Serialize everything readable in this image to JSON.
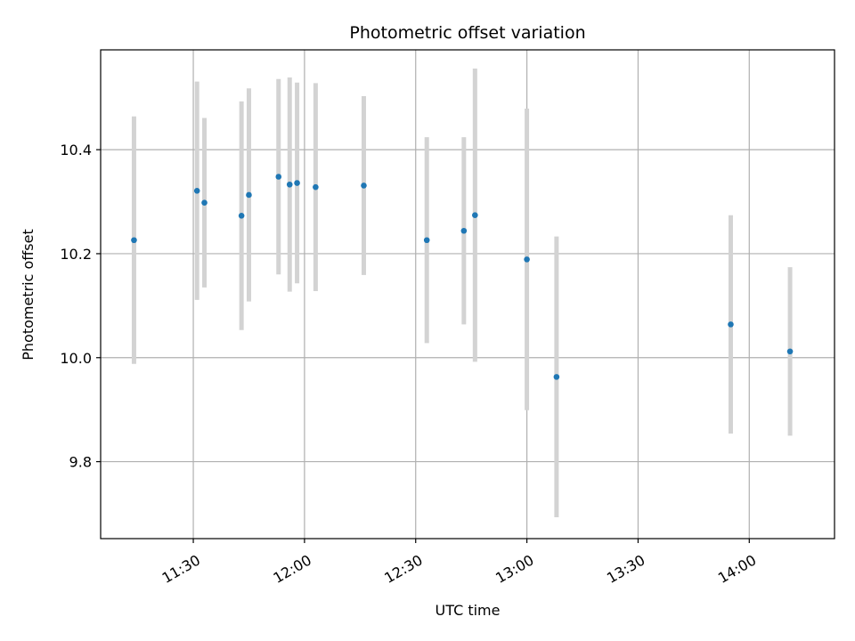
{
  "chart_data": {
    "type": "scatter",
    "title": "Photometric offset variation",
    "xlabel": "UTC time",
    "ylabel": "Photometric offset",
    "grid": true,
    "x_unit": "UTC time of day (HH:MM)",
    "xlim": [
      "11:05",
      "14:23"
    ],
    "ylim": [
      9.652,
      10.592
    ],
    "x_ticks": [
      "11:30",
      "12:00",
      "12:30",
      "13:00",
      "13:30",
      "14:00"
    ],
    "y_ticks": [
      9.8,
      10.0,
      10.2,
      10.4
    ],
    "y_tick_labels": [
      "9.8",
      "10.0",
      "10.2",
      "10.4"
    ],
    "marker_color": "#1f77b4",
    "errorbar_color": "#d3d3d3",
    "points": [
      {
        "x": "11:14",
        "y": 10.226,
        "err": 0.238
      },
      {
        "x": "11:31",
        "y": 10.321,
        "err": 0.21
      },
      {
        "x": "11:33",
        "y": 10.298,
        "err": 0.163
      },
      {
        "x": "11:43",
        "y": 10.273,
        "err": 0.22
      },
      {
        "x": "11:45",
        "y": 10.313,
        "err": 0.205
      },
      {
        "x": "11:53",
        "y": 10.348,
        "err": 0.188
      },
      {
        "x": "11:56",
        "y": 10.333,
        "err": 0.206
      },
      {
        "x": "11:58",
        "y": 10.336,
        "err": 0.193
      },
      {
        "x": "12:03",
        "y": 10.328,
        "err": 0.2
      },
      {
        "x": "12:16",
        "y": 10.331,
        "err": 0.172
      },
      {
        "x": "12:33",
        "y": 10.226,
        "err": 0.198
      },
      {
        "x": "12:43",
        "y": 10.244,
        "err": 0.18
      },
      {
        "x": "12:46",
        "y": 10.274,
        "err": 0.282
      },
      {
        "x": "13:00",
        "y": 10.189,
        "err": 0.29
      },
      {
        "x": "13:08",
        "y": 9.963,
        "err": 0.27
      },
      {
        "x": "13:55",
        "y": 10.064,
        "err": 0.21
      },
      {
        "x": "14:11",
        "y": 10.012,
        "err": 0.162
      }
    ]
  }
}
